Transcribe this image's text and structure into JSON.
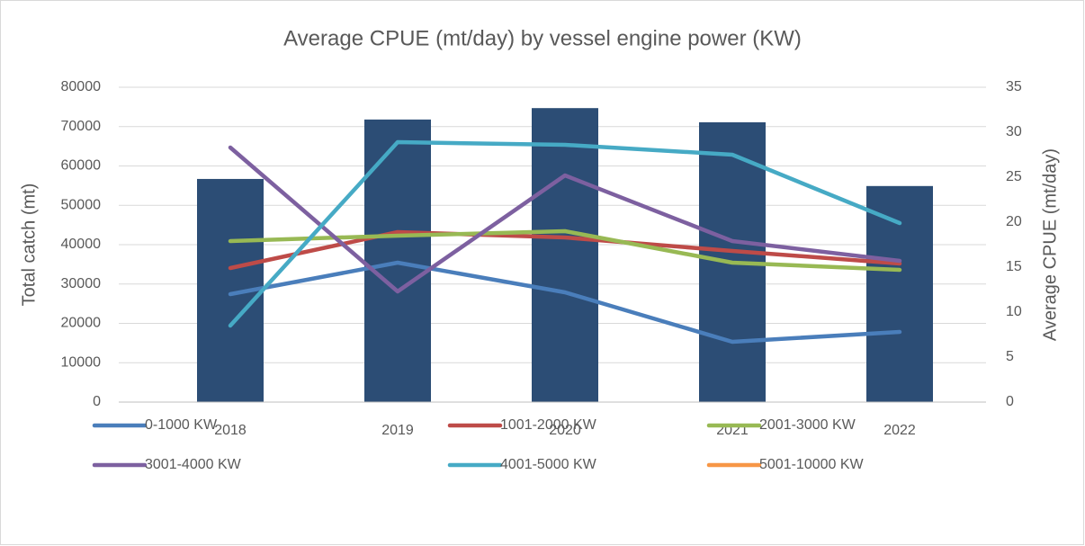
{
  "chart_data": {
    "type": "bar-line",
    "title": "Average CPUE (mt/day) by vessel engine power (KW)",
    "ylabel": "Total catch (mt)",
    "y2label": "Average CPUE (mt/day)",
    "categories": [
      "2018",
      "2019",
      "2020",
      "2021",
      "2022"
    ],
    "ylim": [
      0,
      80000
    ],
    "yticks": [
      0,
      10000,
      20000,
      30000,
      40000,
      50000,
      60000,
      70000,
      80000
    ],
    "y2lim": [
      0,
      35
    ],
    "y2ticks": [
      0,
      5,
      10,
      15,
      20,
      25,
      30,
      35
    ],
    "grid": true,
    "legend": "bottom",
    "series": [
      {
        "type": "bar",
        "color": "#2c4d75",
        "values": [
          56700,
          71800,
          74700,
          71100,
          54900
        ]
      },
      {
        "type": "line",
        "axis": "y2",
        "name": "0-1000 KW",
        "color": "#4a7ebb",
        "values": [
          12.0,
          15.5,
          12.2,
          6.7,
          7.8
        ]
      },
      {
        "type": "line",
        "axis": "y2",
        "name": "1001-2000 KW",
        "color": "#be4b48",
        "values": [
          14.9,
          18.9,
          18.3,
          16.8,
          15.4
        ]
      },
      {
        "type": "line",
        "axis": "y2",
        "name": "2001-3000 KW",
        "color": "#98b954",
        "values": [
          17.9,
          18.5,
          19.0,
          15.5,
          14.7
        ]
      },
      {
        "type": "line",
        "axis": "y2",
        "name": "3001-4000 KW",
        "color": "#7d60a0",
        "values": [
          28.3,
          12.3,
          25.2,
          17.9,
          15.7
        ]
      },
      {
        "type": "line",
        "axis": "y2",
        "name": "4001-5000 KW",
        "color": "#46aac5",
        "values": [
          8.5,
          28.9,
          28.6,
          27.5,
          19.9
        ]
      },
      {
        "type": "line",
        "axis": "y2",
        "name": "5001-10000 KW",
        "color": "#f79646",
        "values": [
          null,
          null,
          null,
          null,
          null
        ]
      }
    ]
  }
}
